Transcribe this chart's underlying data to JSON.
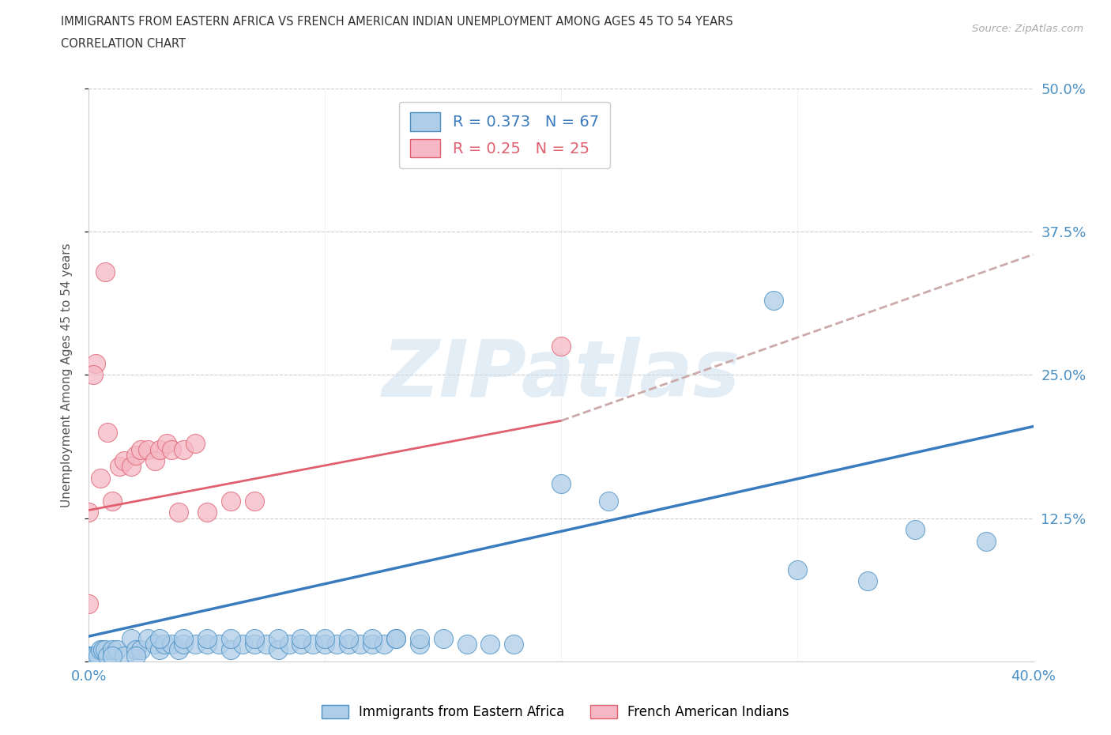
{
  "title_line1": "IMMIGRANTS FROM EASTERN AFRICA VS FRENCH AMERICAN INDIAN UNEMPLOYMENT AMONG AGES 45 TO 54 YEARS",
  "title_line2": "CORRELATION CHART",
  "source_text": "Source: ZipAtlas.com",
  "ylabel": "Unemployment Among Ages 45 to 54 years",
  "xlim": [
    0.0,
    0.4
  ],
  "ylim": [
    0.0,
    0.5
  ],
  "blue_color": "#aecde8",
  "blue_edge": "#4a90c4",
  "pink_color": "#f5b8c4",
  "pink_edge": "#e06070",
  "blue_line_color": "#3a7bbf",
  "pink_line_solid_color": "#e06070",
  "pink_line_dashed_color": "#ccaaaa",
  "R_blue": 0.373,
  "N_blue": 67,
  "R_pink": 0.25,
  "N_pink": 25,
  "watermark": "ZIPatlas",
  "watermark_color": "#ccdff0",
  "tick_color": "#4a90c4",
  "title_color": "#333333",
  "ylabel_color": "#555555",
  "grid_color": "#cccccc",
  "blue_scatter_x": [
    0.0,
    0.0,
    0.001,
    0.002,
    0.003,
    0.004,
    0.005,
    0.006,
    0.007,
    0.008,
    0.01,
    0.012,
    0.015,
    0.018,
    0.02,
    0.022,
    0.025,
    0.028,
    0.03,
    0.032,
    0.035,
    0.038,
    0.04,
    0.045,
    0.05,
    0.055,
    0.06,
    0.065,
    0.07,
    0.075,
    0.08,
    0.085,
    0.09,
    0.095,
    0.1,
    0.105,
    0.11,
    0.115,
    0.12,
    0.125,
    0.13,
    0.14,
    0.15,
    0.16,
    0.17,
    0.18,
    0.03,
    0.04,
    0.05,
    0.06,
    0.07,
    0.08,
    0.09,
    0.1,
    0.11,
    0.12,
    0.13,
    0.14,
    0.2,
    0.29,
    0.3,
    0.33,
    0.35,
    0.38,
    0.22,
    0.01,
    0.02
  ],
  "blue_scatter_y": [
    0.005,
    0.005,
    0.005,
    0.005,
    0.005,
    0.005,
    0.01,
    0.01,
    0.01,
    0.005,
    0.01,
    0.01,
    0.005,
    0.02,
    0.01,
    0.01,
    0.02,
    0.015,
    0.01,
    0.015,
    0.015,
    0.01,
    0.015,
    0.015,
    0.015,
    0.015,
    0.01,
    0.015,
    0.015,
    0.015,
    0.01,
    0.015,
    0.015,
    0.015,
    0.015,
    0.015,
    0.015,
    0.015,
    0.015,
    0.015,
    0.02,
    0.015,
    0.02,
    0.015,
    0.015,
    0.015,
    0.02,
    0.02,
    0.02,
    0.02,
    0.02,
    0.02,
    0.02,
    0.02,
    0.02,
    0.02,
    0.02,
    0.02,
    0.155,
    0.315,
    0.08,
    0.07,
    0.115,
    0.105,
    0.14,
    0.005,
    0.005
  ],
  "pink_scatter_x": [
    0.0,
    0.003,
    0.005,
    0.007,
    0.01,
    0.013,
    0.015,
    0.018,
    0.02,
    0.022,
    0.025,
    0.028,
    0.03,
    0.033,
    0.035,
    0.038,
    0.04,
    0.045,
    0.05,
    0.06,
    0.07,
    0.0,
    0.002,
    0.008,
    0.2
  ],
  "pink_scatter_y": [
    0.13,
    0.26,
    0.16,
    0.34,
    0.14,
    0.17,
    0.175,
    0.17,
    0.18,
    0.185,
    0.185,
    0.175,
    0.185,
    0.19,
    0.185,
    0.13,
    0.185,
    0.19,
    0.13,
    0.14,
    0.14,
    0.05,
    0.25,
    0.2,
    0.275
  ],
  "blue_line_x0": 0.0,
  "blue_line_x1": 0.4,
  "blue_line_y0": 0.022,
  "blue_line_y1": 0.205,
  "pink_line_x0": 0.0,
  "pink_line_x1_solid": 0.2,
  "pink_line_x1_dashed": 0.4,
  "pink_line_y0": 0.132,
  "pink_line_y1_solid": 0.21,
  "pink_line_y1_dashed": 0.355
}
